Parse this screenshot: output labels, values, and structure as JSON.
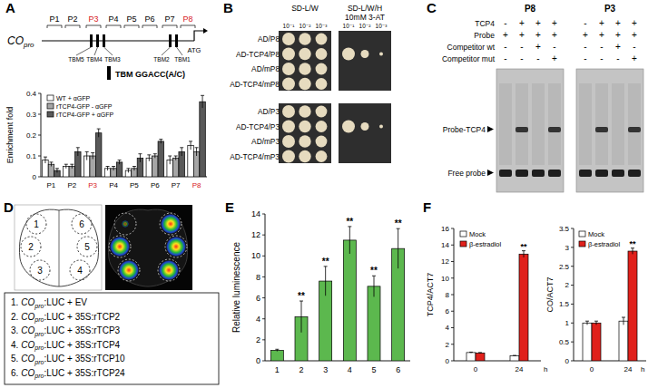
{
  "chart_data": [
    {
      "type": "bar",
      "y_label": "Enrichment fold",
      "categories": [
        "P1",
        "P2",
        "P3",
        "P4",
        "P5",
        "P6",
        "P7",
        "P8"
      ],
      "series": [
        {
          "name": "WT + αGFP",
          "color": "#ffffff",
          "values": [
            0.08,
            0.05,
            0.1,
            0.04,
            0.03,
            0.09,
            0.08,
            0.15
          ],
          "errors": [
            0.015,
            0.01,
            0.02,
            0.01,
            0.01,
            0.015,
            0.02,
            0.02
          ]
        },
        {
          "name": "rTCP4-GFP - αGFP",
          "color": "#a6a6a6",
          "values": [
            0.06,
            0.05,
            0.1,
            0.04,
            0.04,
            0.1,
            0.09,
            0.12
          ],
          "errors": [
            0.01,
            0.01,
            0.015,
            0.01,
            0.01,
            0.01,
            0.01,
            0.02
          ]
        },
        {
          "name": "rTCP4-GFP + αGFP",
          "color": "#595959",
          "values": [
            0.03,
            0.12,
            0.21,
            0.07,
            0.09,
            0.17,
            0.12,
            0.36
          ],
          "errors": [
            0.01,
            0.02,
            0.02,
            0.01,
            0.02,
            0.01,
            0.02,
            0.03
          ]
        }
      ],
      "ylim": [
        0,
        0.4
      ],
      "yticks": [
        0,
        0.1,
        0.2,
        0.3,
        0.4
      ],
      "legend": "top-left"
    },
    {
      "type": "bar",
      "y_label": "Relative luminescence",
      "categories": [
        "1",
        "2",
        "3",
        "4",
        "5",
        "6"
      ],
      "series": [
        {
          "color": "#5cb84e",
          "values": [
            1,
            4.2,
            7.6,
            11.5,
            7.1,
            10.7
          ],
          "errors": [
            0.1,
            1.5,
            1.4,
            1.3,
            1.0,
            1.9
          ],
          "significance": [
            null,
            "**",
            "**",
            "**",
            "**",
            "**"
          ]
        }
      ],
      "ylim": [
        0,
        14
      ],
      "yticks": [
        0,
        2,
        4,
        6,
        8,
        10,
        12,
        14
      ]
    },
    {
      "type": "bar",
      "y_label": "TCP4/ACT7",
      "x_label": "h",
      "categories": [
        "0",
        "24"
      ],
      "series": [
        {
          "name": "Mock",
          "color": "#ffffff",
          "values": [
            1,
            0.6
          ],
          "errors": [
            0.05,
            0.05
          ]
        },
        {
          "name": "β-estradiol",
          "color": "#e0201b",
          "values": [
            0.95,
            12.9
          ],
          "errors": [
            0.05,
            0.4
          ],
          "significance": [
            null,
            "**"
          ]
        }
      ],
      "ylim": [
        0,
        16
      ],
      "yticks": [
        0,
        2,
        4,
        6,
        8,
        10,
        12,
        14,
        16
      ],
      "legend": "top-left"
    },
    {
      "type": "bar",
      "y_label": "CO/ACT7",
      "x_label": "h",
      "categories": [
        "0",
        "24"
      ],
      "series": [
        {
          "name": "Mock",
          "color": "#ffffff",
          "values": [
            1,
            1.05
          ],
          "errors": [
            0.05,
            0.1
          ]
        },
        {
          "name": "β-estradiol",
          "color": "#e0201b",
          "values": [
            1,
            2.9
          ],
          "errors": [
            0.05,
            0.08
          ],
          "significance": [
            null,
            "**"
          ]
        }
      ],
      "ylim": [
        0,
        3.5
      ],
      "yticks": [
        0,
        0.5,
        1,
        1.5,
        2,
        2.5,
        3,
        3.5
      ],
      "legend": "top-left"
    }
  ],
  "figure": {
    "A": {
      "letter": "A",
      "promoter": "CO",
      "promoter_sub": "pro",
      "atg": "ATG",
      "regions": [
        {
          "label": "P1",
          "highlight": false
        },
        {
          "label": "P2",
          "highlight": false
        },
        {
          "label": "P3",
          "highlight": true
        },
        {
          "label": "P4",
          "highlight": false
        },
        {
          "label": "P5",
          "highlight": false
        },
        {
          "label": "P6",
          "highlight": false
        },
        {
          "label": "P7",
          "highlight": false
        },
        {
          "label": "P8",
          "highlight": true
        }
      ],
      "tbms": [
        "TBM5",
        "TBM4",
        "TBM3",
        "TBM2",
        "TBM1"
      ],
      "tbm_legend": "TBM GGACC(A/C)"
    },
    "B": {
      "letter": "B",
      "conditions": [
        {
          "lines": [
            "SD-L/W"
          ]
        },
        {
          "lines": [
            "SD-L/W/H",
            "10mM 3-AT"
          ]
        }
      ],
      "dilutions": [
        "10⁻¹",
        "10⁻²",
        "10⁻³"
      ],
      "rows": [
        {
          "label": "AD/P8",
          "selective_growth": false
        },
        {
          "label": "AD-TCP4/P8",
          "selective_growth": true
        },
        {
          "label": "AD/mP8",
          "selective_growth": false
        },
        {
          "label": "AD-TCP4/mP8",
          "selective_growth": false
        },
        {
          "label": "AD/P3",
          "selective_growth": false
        },
        {
          "label": "AD-TCP4/P3",
          "selective_growth": true
        },
        {
          "label": "AD/mP3",
          "selective_growth": false
        },
        {
          "label": "AD-TCP4/mP3",
          "selective_growth": false
        }
      ]
    },
    "C": {
      "letter": "C",
      "row_labels": [
        "TCP4",
        "Probe",
        "Competitor wt",
        "Competitor mut"
      ],
      "groups": [
        {
          "name": "P8",
          "rows": [
            [
              "-",
              "+",
              "+",
              "+"
            ],
            [
              "+",
              "+",
              "+",
              "+"
            ],
            [
              "-",
              "-",
              "+",
              "-"
            ],
            [
              "-",
              "-",
              "-",
              "+"
            ]
          ],
          "shift": [
            false,
            true,
            false,
            true
          ]
        },
        {
          "name": "P3",
          "rows": [
            [
              "-",
              "+",
              "+",
              "+"
            ],
            [
              "+",
              "+",
              "+",
              "+"
            ],
            [
              "-",
              "-",
              "+",
              "-"
            ],
            [
              "-",
              "-",
              "-",
              "+"
            ]
          ],
          "shift": [
            false,
            true,
            false,
            true
          ]
        }
      ],
      "band_labels": [
        "Probe-TCP4",
        "Free probe"
      ]
    },
    "D": {
      "letter": "D",
      "sites": [
        "1",
        "2",
        "3",
        "4",
        "5",
        "6"
      ],
      "legend": [
        {
          "num": "1.",
          "gene": "CO",
          "sub": "pro",
          "text": ":LUC + EV"
        },
        {
          "num": "2.",
          "gene": "CO",
          "sub": "pro",
          "text": ":LUC + 35S:rTCP2"
        },
        {
          "num": "3.",
          "gene": "CO",
          "sub": "pro",
          "text": ":LUC + 35S:rTCP3"
        },
        {
          "num": "4.",
          "gene": "CO",
          "sub": "pro",
          "text": ":LUC + 35S:rTCP4"
        },
        {
          "num": "5.",
          "gene": "CO",
          "sub": "pro",
          "text": ":LUC + 35S:rTCP10"
        },
        {
          "num": "6.",
          "gene": "CO",
          "sub": "pro",
          "text": ":LUC + 35S:rTCP24"
        }
      ]
    },
    "E": {
      "letter": "E"
    },
    "F": {
      "letter": "F"
    }
  }
}
